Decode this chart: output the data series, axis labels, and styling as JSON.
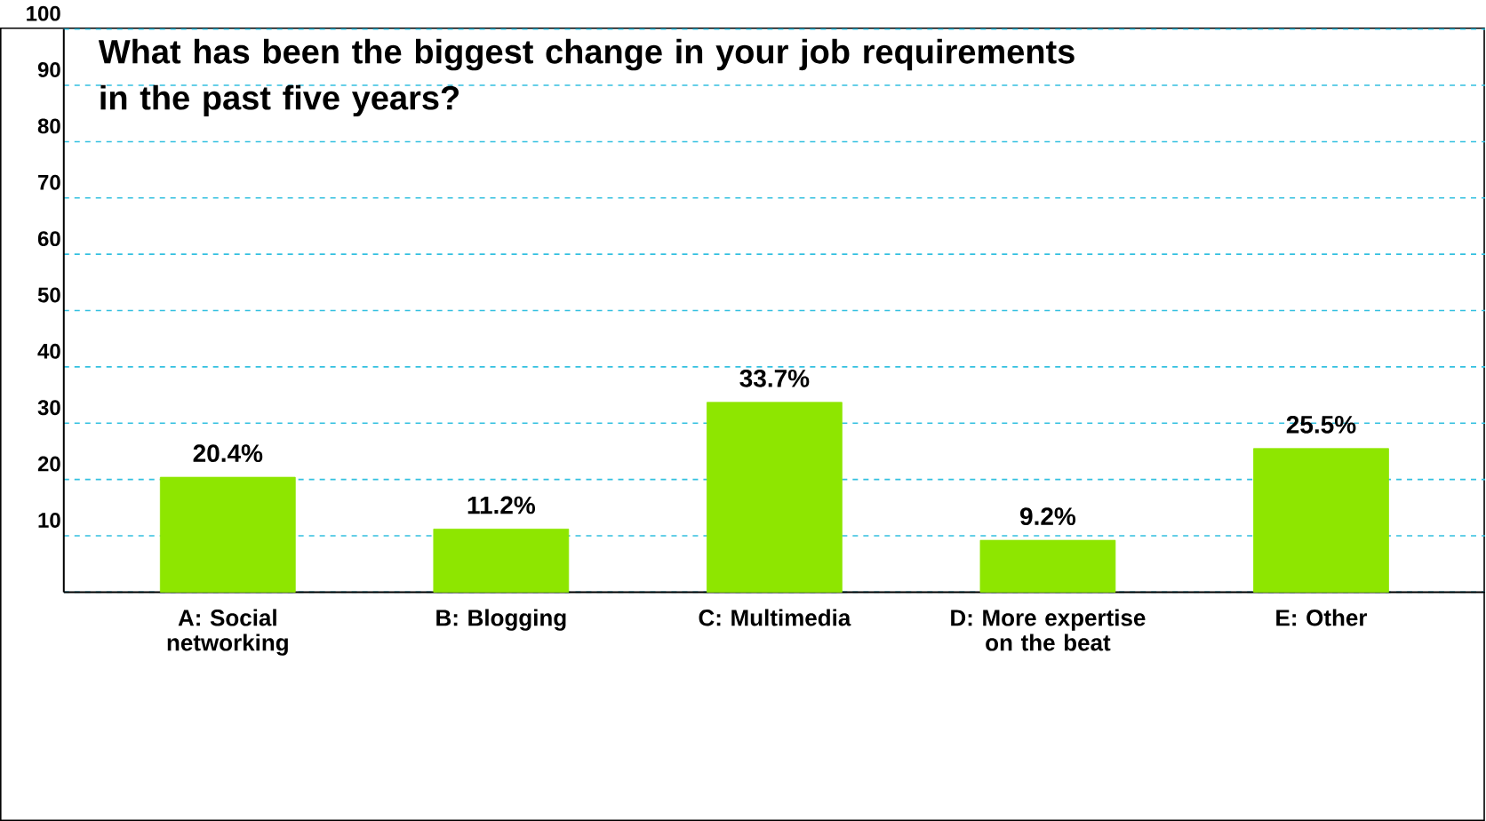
{
  "chart_data": {
    "type": "bar",
    "title": "What has been the biggest change in your job requirements in the past five years?",
    "categories": [
      "A: Social networking",
      "B: Blogging",
      "C: Multimedia",
      "D: More expertise on the beat",
      "E: Other"
    ],
    "values": [
      20.4,
      11.2,
      33.7,
      9.2,
      25.5
    ],
    "value_labels": [
      "20.4%",
      "11.2%",
      "33.7%",
      "9.2%",
      "25.5%"
    ],
    "color": "#8ee600",
    "ylim": [
      0,
      100
    ],
    "yticks": [
      {
        "value": 0,
        "label": null
      },
      10,
      20,
      30,
      40,
      50,
      60,
      70,
      80,
      90,
      100
    ],
    "grid": "y"
  }
}
